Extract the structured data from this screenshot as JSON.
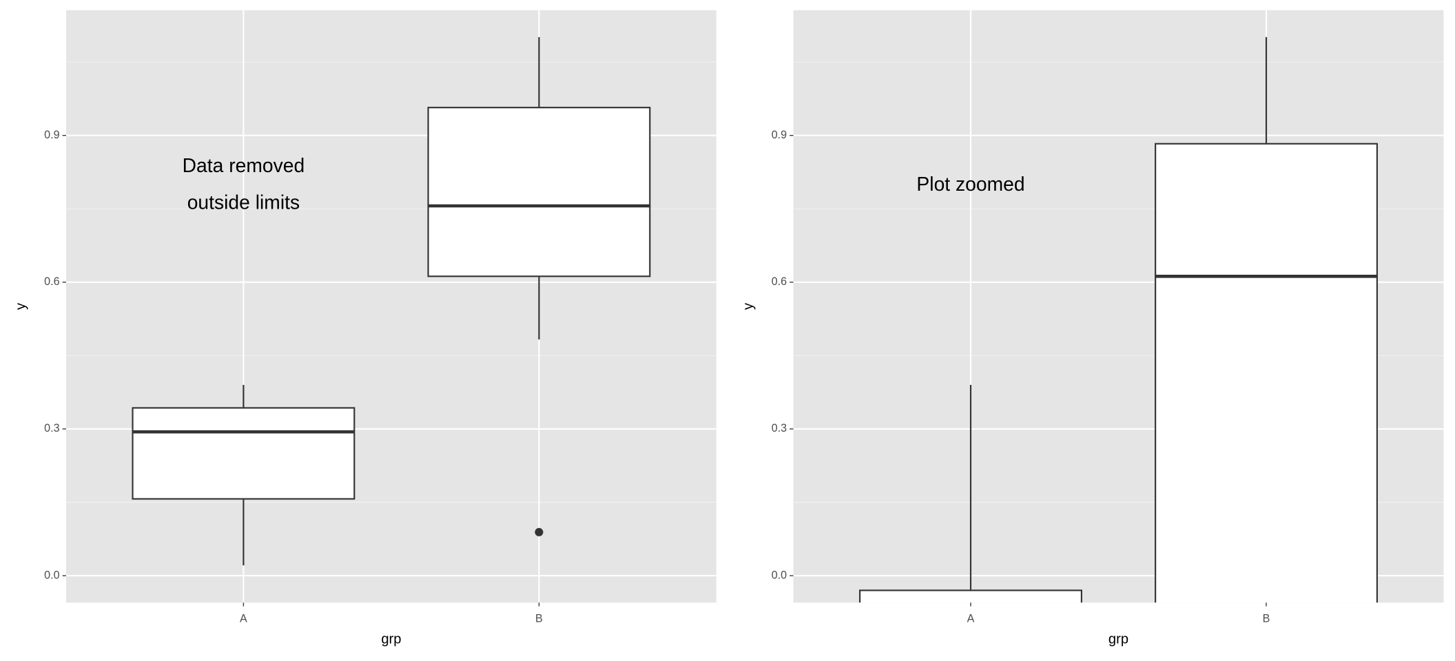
{
  "chart_data": [
    {
      "type": "boxplot",
      "x_label": "grp",
      "y_label": "y",
      "annotation": [
        "Data removed",
        "outside limits"
      ],
      "categories": [
        "A",
        "B"
      ],
      "boxes": [
        {
          "whisker_low": 0.021,
          "q1": 0.157,
          "median": 0.294,
          "q3": 0.343,
          "whisker_high": 0.39,
          "outliers": []
        },
        {
          "whisker_low": 0.483,
          "q1": 0.612,
          "median": 0.756,
          "q3": 0.957,
          "whisker_high": 1.101,
          "outliers": [
            0.089
          ]
        }
      ],
      "fill": "#ffffff",
      "stroke": "#333333",
      "ylim": [
        -0.055,
        1.156
      ],
      "yticks": [
        {
          "value": 0,
          "label": "0.0"
        },
        0.3,
        0.6,
        0.9
      ],
      "grid": true
    },
    {
      "type": "boxplot",
      "x_label": "grp",
      "y_label": "y",
      "annotation": [
        "Plot zoomed"
      ],
      "categories": [
        "A",
        "B"
      ],
      "boxes": [
        {
          "whisker_low": null,
          "q1": null,
          "median": null,
          "q3": -0.03,
          "whisker_high": 0.39,
          "outliers": []
        },
        {
          "whisker_low": null,
          "q1": null,
          "median": 0.612,
          "q3": 0.883,
          "whisker_high": 1.101,
          "outliers": []
        }
      ],
      "fill": "#ffffff",
      "stroke": "#333333",
      "ylim": [
        -0.055,
        1.156
      ],
      "yticks": [
        {
          "value": 0,
          "label": "0.0"
        },
        0.3,
        0.6,
        0.9
      ],
      "grid": true
    }
  ]
}
